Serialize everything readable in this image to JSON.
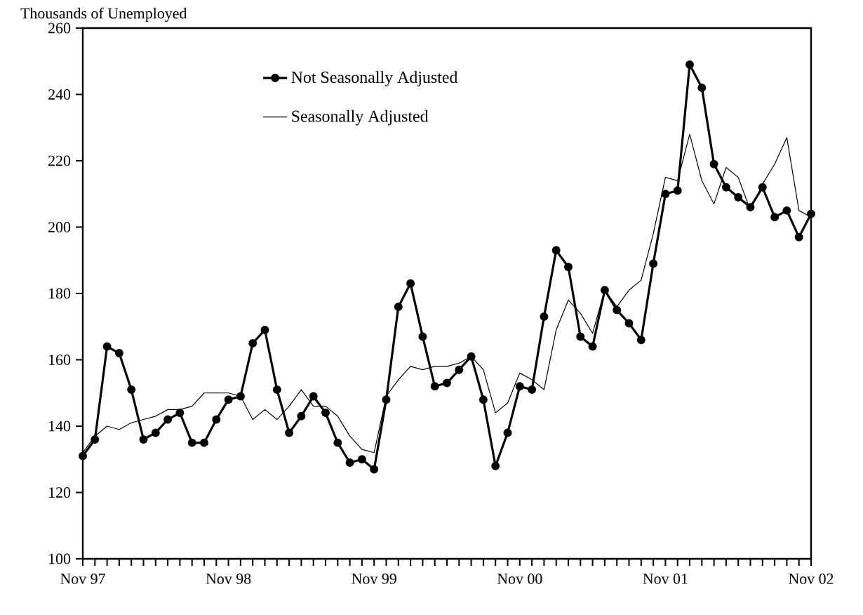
{
  "chart_data": {
    "type": "line",
    "ylabel": "Thousands of Unemployed",
    "x": [
      "1997-11",
      "1997-12",
      "1998-01",
      "1998-02",
      "1998-03",
      "1998-04",
      "1998-05",
      "1998-06",
      "1998-07",
      "1998-08",
      "1998-09",
      "1998-10",
      "1998-11",
      "1998-12",
      "1999-01",
      "1999-02",
      "1999-03",
      "1999-04",
      "1999-05",
      "1999-06",
      "1999-07",
      "1999-08",
      "1999-09",
      "1999-10",
      "1999-11",
      "1999-12",
      "2000-01",
      "2000-02",
      "2000-03",
      "2000-04",
      "2000-05",
      "2000-06",
      "2000-07",
      "2000-08",
      "2000-09",
      "2000-10",
      "2000-11",
      "2000-12",
      "2001-01",
      "2001-02",
      "2001-03",
      "2001-04",
      "2001-05",
      "2001-06",
      "2001-07",
      "2001-08",
      "2001-09",
      "2001-10",
      "2001-11",
      "2001-12",
      "2002-01",
      "2002-02",
      "2002-03",
      "2002-04",
      "2002-05",
      "2002-06",
      "2002-07",
      "2002-08",
      "2002-09",
      "2002-10",
      "2002-11"
    ],
    "series": [
      {
        "name": "Not Seasonally Adjusted",
        "color": "#000000",
        "marker": "circle",
        "values": [
          131,
          136,
          164,
          162,
          151,
          136,
          138,
          142,
          144,
          135,
          135,
          142,
          148,
          149,
          165,
          169,
          151,
          138,
          143,
          149,
          144,
          135,
          129,
          130,
          127,
          148,
          176,
          183,
          167,
          152,
          153,
          157,
          161,
          148,
          128,
          138,
          152,
          151,
          173,
          193,
          188,
          167,
          164,
          181,
          175,
          171,
          166,
          189,
          210,
          211,
          249,
          242,
          219,
          212,
          209,
          206,
          212,
          203,
          205,
          197,
          204
        ]
      },
      {
        "name": "Seasonally Adjusted",
        "color": "#000000",
        "marker": "none",
        "values": [
          132,
          137,
          140,
          139,
          141,
          142,
          143,
          145,
          145,
          146,
          150,
          150,
          150,
          149,
          142,
          145,
          142,
          146,
          151,
          146,
          146,
          143,
          137,
          133,
          132,
          149,
          154,
          158,
          157,
          158,
          158,
          159,
          161,
          157,
          144,
          147,
          156,
          154,
          151,
          169,
          178,
          174,
          168,
          181,
          176,
          181,
          184,
          198,
          215,
          214,
          228,
          214,
          207,
          218,
          215,
          205,
          213,
          219,
          227,
          205,
          203
        ]
      }
    ],
    "xlim": [
      "1997-11",
      "2002-11"
    ],
    "xticks": [
      {
        "value": "1997-11",
        "label": "Nov 97"
      },
      {
        "value": "1998-11",
        "label": "Nov 98"
      },
      {
        "value": "1999-11",
        "label": "Nov 99"
      },
      {
        "value": "2000-11",
        "label": "Nov 00"
      },
      {
        "value": "2001-11",
        "label": "Nov 01"
      },
      {
        "value": "2002-11",
        "label": "Nov 02"
      }
    ],
    "ylim": [
      100,
      260
    ],
    "yticks": [
      100,
      120,
      140,
      160,
      180,
      200,
      220,
      240,
      260
    ],
    "grid": false,
    "legend": "top left",
    "line_style": "solid"
  }
}
